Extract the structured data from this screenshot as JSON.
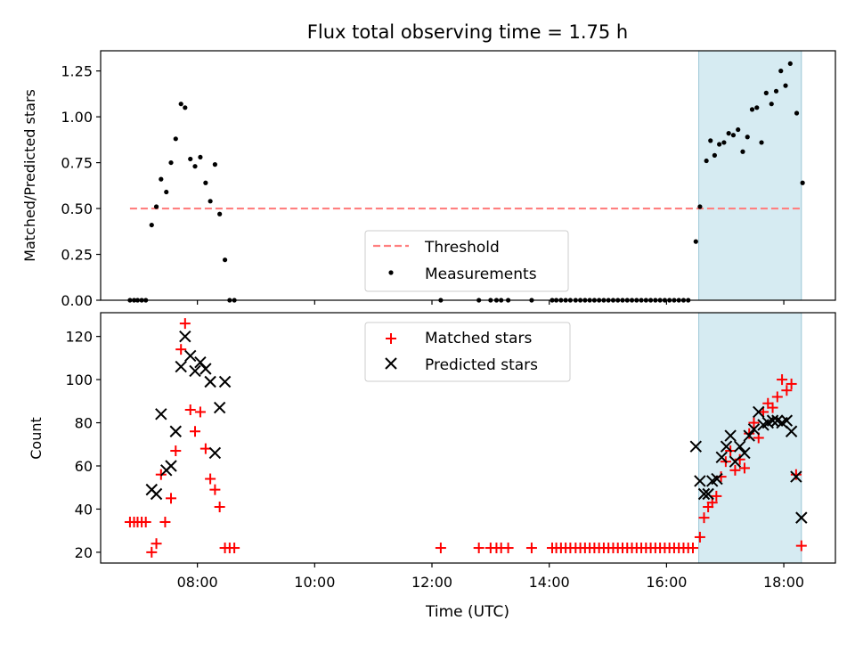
{
  "title": "Flux total observing time = 1.75 h",
  "colors": {
    "threshold": "#ff7f7f",
    "measurement": "#000000",
    "matched": "#ff0000",
    "predicted": "#000000",
    "highlight": "#add8e6"
  },
  "chart_data": [
    {
      "type": "scatter",
      "ylabel": "Matched/Predicted stars",
      "ylim": [
        0,
        1.36
      ],
      "xlim_hours": [
        6.35,
        18.88
      ],
      "highlight_hours": [
        16.55,
        18.3
      ],
      "yticks": [
        0,
        0.25,
        0.5,
        0.75,
        1.0,
        1.25
      ],
      "ytick_labels": [
        "0.00",
        "0.25",
        "0.50",
        "0.75",
        "1.00",
        "1.25"
      ],
      "threshold": {
        "name": "Threshold",
        "y": 0.5,
        "x_range_hours": [
          6.85,
          18.33
        ]
      },
      "series": [
        {
          "name": "Measurements",
          "marker": "dot",
          "points": [
            [
              6.85,
              0
            ],
            [
              6.92,
              0
            ],
            [
              6.98,
              0
            ],
            [
              7.05,
              0
            ],
            [
              7.12,
              0
            ],
            [
              7.22,
              0.41
            ],
            [
              7.3,
              0.51
            ],
            [
              7.38,
              0.66
            ],
            [
              7.47,
              0.59
            ],
            [
              7.55,
              0.75
            ],
            [
              7.63,
              0.88
            ],
            [
              7.72,
              1.07
            ],
            [
              7.79,
              1.05
            ],
            [
              7.88,
              0.77
            ],
            [
              7.96,
              0.73
            ],
            [
              8.05,
              0.78
            ],
            [
              8.14,
              0.64
            ],
            [
              8.22,
              0.54
            ],
            [
              8.3,
              0.74
            ],
            [
              8.38,
              0.47
            ],
            [
              8.47,
              0.22
            ],
            [
              8.55,
              0
            ],
            [
              8.63,
              0
            ],
            [
              12.15,
              0
            ],
            [
              12.8,
              0
            ],
            [
              13.0,
              0
            ],
            [
              13.1,
              0
            ],
            [
              13.18,
              0
            ],
            [
              13.3,
              0
            ],
            [
              13.7,
              0
            ],
            [
              14.05,
              0
            ],
            [
              14.12,
              0
            ],
            [
              14.2,
              0
            ],
            [
              14.28,
              0
            ],
            [
              14.36,
              0
            ],
            [
              14.45,
              0
            ],
            [
              14.53,
              0
            ],
            [
              14.61,
              0
            ],
            [
              14.69,
              0
            ],
            [
              14.77,
              0
            ],
            [
              14.85,
              0
            ],
            [
              14.93,
              0
            ],
            [
              15.01,
              0
            ],
            [
              15.09,
              0
            ],
            [
              15.17,
              0
            ],
            [
              15.25,
              0
            ],
            [
              15.33,
              0
            ],
            [
              15.41,
              0
            ],
            [
              15.49,
              0
            ],
            [
              15.57,
              0
            ],
            [
              15.65,
              0
            ],
            [
              15.73,
              0
            ],
            [
              15.81,
              0
            ],
            [
              15.89,
              0
            ],
            [
              15.97,
              0
            ],
            [
              16.05,
              0
            ],
            [
              16.13,
              0
            ],
            [
              16.21,
              0
            ],
            [
              16.29,
              0
            ],
            [
              16.37,
              0
            ],
            [
              16.5,
              0.32
            ],
            [
              16.57,
              0.51
            ],
            [
              16.68,
              0.76
            ],
            [
              16.75,
              0.87
            ],
            [
              16.82,
              0.79
            ],
            [
              16.9,
              0.85
            ],
            [
              16.98,
              0.86
            ],
            [
              17.06,
              0.91
            ],
            [
              17.14,
              0.9
            ],
            [
              17.22,
              0.93
            ],
            [
              17.3,
              0.81
            ],
            [
              17.38,
              0.89
            ],
            [
              17.46,
              1.04
            ],
            [
              17.54,
              1.05
            ],
            [
              17.62,
              0.86
            ],
            [
              17.7,
              1.13
            ],
            [
              17.79,
              1.07
            ],
            [
              17.87,
              1.14
            ],
            [
              17.95,
              1.25
            ],
            [
              18.03,
              1.17
            ],
            [
              18.11,
              1.29
            ],
            [
              18.22,
              1.02
            ],
            [
              18.32,
              0.64
            ]
          ]
        }
      ]
    },
    {
      "type": "scatter",
      "xlabel": "Time (UTC)",
      "ylabel": "Count",
      "ylim": [
        15,
        131
      ],
      "xlim_hours": [
        6.35,
        18.88
      ],
      "highlight_hours": [
        16.55,
        18.3
      ],
      "yticks": [
        20,
        40,
        60,
        80,
        100,
        120
      ],
      "xticks_hours": [
        8,
        10,
        12,
        14,
        16,
        18
      ],
      "xtick_labels": [
        "08:00",
        "10:00",
        "12:00",
        "14:00",
        "16:00",
        "18:00"
      ],
      "series": [
        {
          "name": "Matched stars",
          "marker": "plus",
          "points": [
            [
              6.85,
              34
            ],
            [
              6.92,
              34
            ],
            [
              6.98,
              34
            ],
            [
              7.05,
              34
            ],
            [
              7.12,
              34
            ],
            [
              7.22,
              20
            ],
            [
              7.3,
              24
            ],
            [
              7.38,
              56
            ],
            [
              7.45,
              34
            ],
            [
              7.55,
              45
            ],
            [
              7.63,
              67
            ],
            [
              7.72,
              114
            ],
            [
              7.79,
              126
            ],
            [
              7.88,
              86
            ],
            [
              7.96,
              76
            ],
            [
              8.05,
              85
            ],
            [
              8.14,
              68
            ],
            [
              8.22,
              54
            ],
            [
              8.3,
              49
            ],
            [
              8.38,
              41
            ],
            [
              8.47,
              22
            ],
            [
              8.55,
              22
            ],
            [
              8.63,
              22
            ],
            [
              12.15,
              22
            ],
            [
              12.8,
              22
            ],
            [
              13.0,
              22
            ],
            [
              13.1,
              22
            ],
            [
              13.18,
              22
            ],
            [
              13.3,
              22
            ],
            [
              13.7,
              22
            ],
            [
              14.05,
              22
            ],
            [
              14.12,
              22
            ],
            [
              14.2,
              22
            ],
            [
              14.28,
              22
            ],
            [
              14.36,
              22
            ],
            [
              14.45,
              22
            ],
            [
              14.53,
              22
            ],
            [
              14.61,
              22
            ],
            [
              14.69,
              22
            ],
            [
              14.77,
              22
            ],
            [
              14.85,
              22
            ],
            [
              14.93,
              22
            ],
            [
              15.01,
              22
            ],
            [
              15.09,
              22
            ],
            [
              15.17,
              22
            ],
            [
              15.25,
              22
            ],
            [
              15.33,
              22
            ],
            [
              15.41,
              22
            ],
            [
              15.49,
              22
            ],
            [
              15.57,
              22
            ],
            [
              15.65,
              22
            ],
            [
              15.73,
              22
            ],
            [
              15.81,
              22
            ],
            [
              15.89,
              22
            ],
            [
              15.97,
              22
            ],
            [
              16.05,
              22
            ],
            [
              16.13,
              22
            ],
            [
              16.21,
              22
            ],
            [
              16.29,
              22
            ],
            [
              16.37,
              22
            ],
            [
              16.45,
              22
            ],
            [
              16.57,
              27
            ],
            [
              16.64,
              36
            ],
            [
              16.71,
              41
            ],
            [
              16.78,
              43
            ],
            [
              16.85,
              46
            ],
            [
              16.93,
              55
            ],
            [
              17.01,
              62
            ],
            [
              17.09,
              67
            ],
            [
              17.17,
              58
            ],
            [
              17.25,
              63
            ],
            [
              17.33,
              59
            ],
            [
              17.41,
              75
            ],
            [
              17.49,
              80
            ],
            [
              17.57,
              73
            ],
            [
              17.65,
              85
            ],
            [
              17.73,
              89
            ],
            [
              17.81,
              87
            ],
            [
              17.89,
              92
            ],
            [
              17.97,
              100
            ],
            [
              18.05,
              95
            ],
            [
              18.13,
              98
            ],
            [
              18.21,
              56
            ],
            [
              18.3,
              23
            ]
          ]
        },
        {
          "name": "Predicted stars",
          "marker": "x",
          "points": [
            [
              7.22,
              49
            ],
            [
              7.3,
              47
            ],
            [
              7.38,
              84
            ],
            [
              7.47,
              58
            ],
            [
              7.55,
              60
            ],
            [
              7.63,
              76
            ],
            [
              7.72,
              106
            ],
            [
              7.79,
              120
            ],
            [
              7.88,
              111
            ],
            [
              7.96,
              104
            ],
            [
              8.05,
              108
            ],
            [
              8.14,
              105
            ],
            [
              8.22,
              99
            ],
            [
              8.3,
              66
            ],
            [
              8.38,
              87
            ],
            [
              8.47,
              99
            ],
            [
              16.5,
              69
            ],
            [
              16.57,
              53
            ],
            [
              16.64,
              47
            ],
            [
              16.71,
              47
            ],
            [
              16.78,
              53
            ],
            [
              16.86,
              54
            ],
            [
              16.94,
              64
            ],
            [
              17.02,
              69
            ],
            [
              17.09,
              74
            ],
            [
              17.17,
              62
            ],
            [
              17.25,
              69
            ],
            [
              17.33,
              66
            ],
            [
              17.41,
              74
            ],
            [
              17.49,
              77
            ],
            [
              17.57,
              85
            ],
            [
              17.65,
              79
            ],
            [
              17.73,
              80
            ],
            [
              17.81,
              81
            ],
            [
              17.89,
              81
            ],
            [
              17.97,
              80
            ],
            [
              18.05,
              81
            ],
            [
              18.13,
              76
            ],
            [
              18.21,
              55
            ],
            [
              18.3,
              36
            ]
          ]
        }
      ]
    }
  ]
}
